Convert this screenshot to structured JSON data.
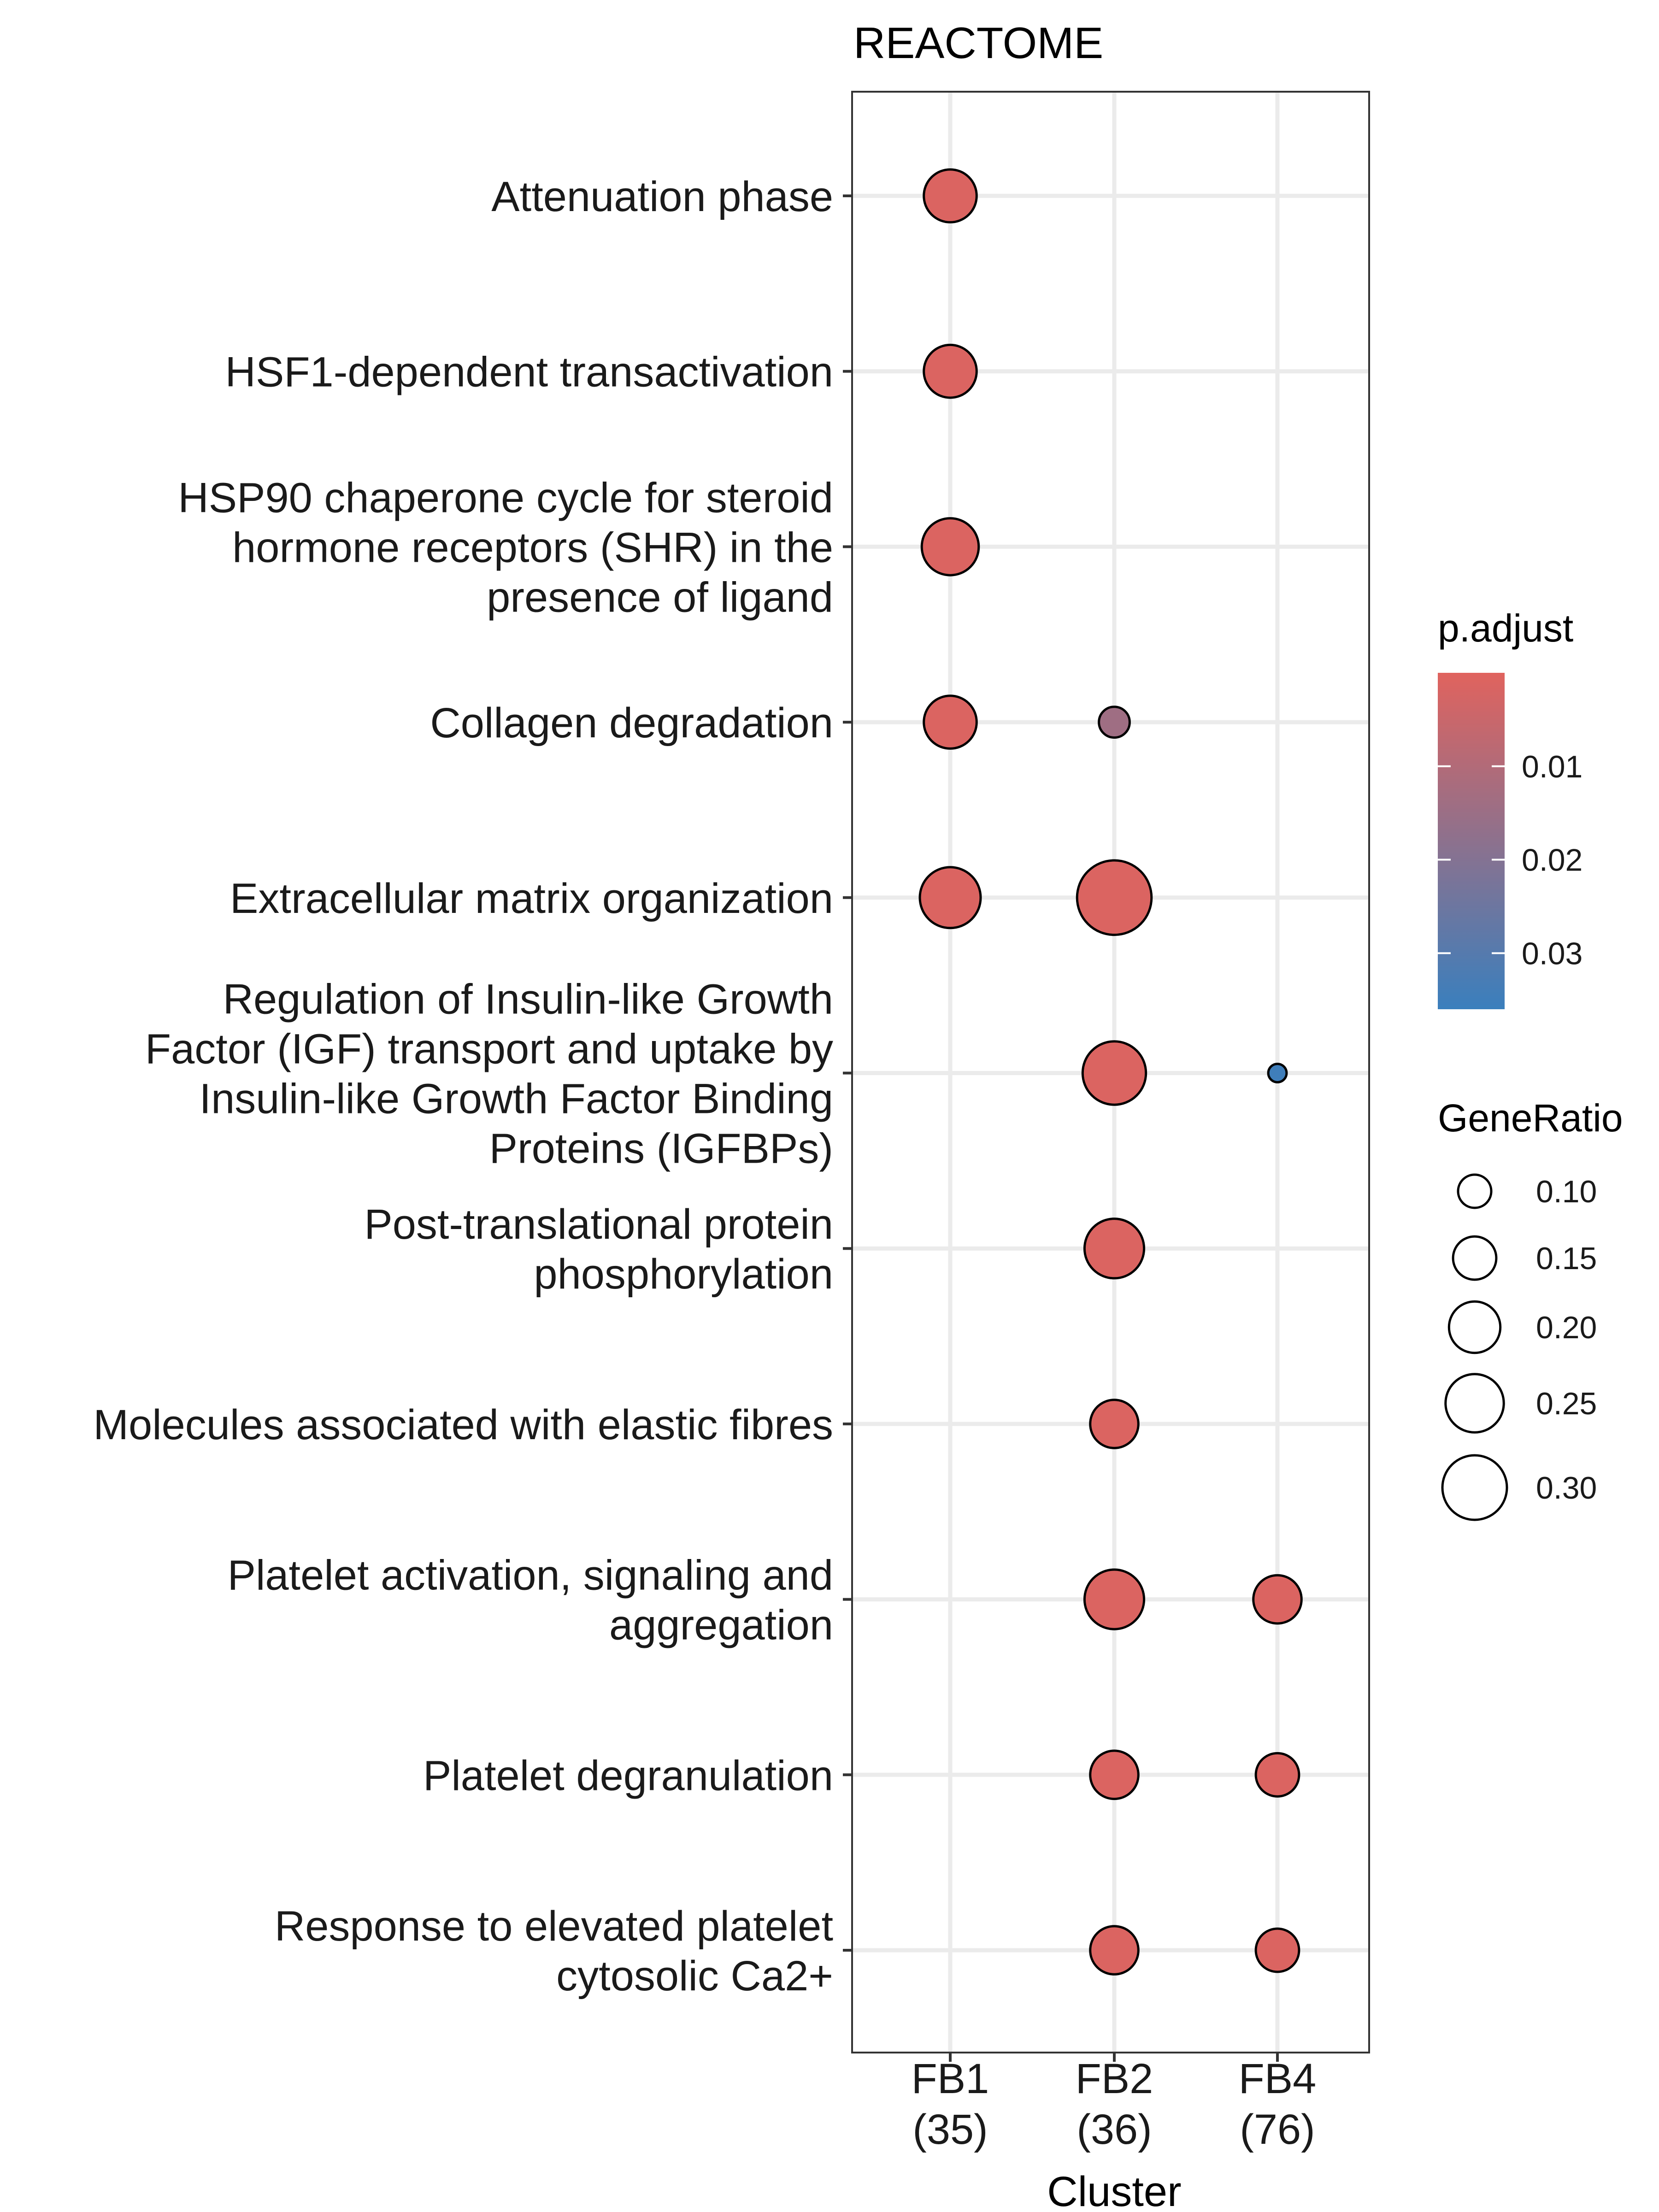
{
  "chart_data": {
    "type": "scatter",
    "title": "REACTOME",
    "xlabel": "Cluster",
    "x_categories": [
      {
        "name": "FB1",
        "count": "(35)"
      },
      {
        "name": "FB2",
        "count": "(36)"
      },
      {
        "name": "FB4",
        "count": "(76)"
      }
    ],
    "y_categories": [
      "Attenuation phase",
      "HSF1-dependent transactivation",
      "HSP90 chaperone cycle for steroid hormone receptors (SHR) in the presence of ligand",
      "Collagen degradation",
      "Extracellular matrix organization",
      "Regulation of Insulin-like Growth Factor (IGF) transport and uptake by Insulin-like Growth Factor Binding Proteins (IGFBPs)",
      "Post-translational protein phosphorylation",
      "Molecules associated with elastic fibres",
      "Platelet activation, signaling and aggregation",
      "Platelet degranulation",
      "Response to elevated platelet cytosolic Ca2+"
    ],
    "y_label_lines": [
      [
        "Attenuation phase"
      ],
      [
        "HSF1-dependent transactivation"
      ],
      [
        "HSP90 chaperone cycle for steroid",
        "hormone receptors (SHR) in the",
        "presence of ligand"
      ],
      [
        "Collagen degradation"
      ],
      [
        "Extracellular matrix organization"
      ],
      [
        "Regulation of Insulin-like Growth",
        "Factor (IGF) transport and uptake by",
        "Insulin-like Growth Factor Binding",
        "Proteins (IGFBPs)"
      ],
      [
        "Post-translational protein",
        "phosphorylation"
      ],
      [
        "Molecules associated with elastic fibres"
      ],
      [
        "Platelet activation, signaling and",
        "aggregation"
      ],
      [
        "Platelet degranulation"
      ],
      [
        "Response to elevated platelet",
        "cytosolic Ca2+"
      ]
    ],
    "points": [
      {
        "x": "FB1",
        "y": "Attenuation phase",
        "gene_ratio": 0.21,
        "p_adjust": 0.001
      },
      {
        "x": "FB1",
        "y": "HSF1-dependent transactivation",
        "gene_ratio": 0.21,
        "p_adjust": 0.001
      },
      {
        "x": "FB1",
        "y": "HSP90 chaperone cycle for steroid hormone receptors (SHR) in the presence of ligand",
        "gene_ratio": 0.24,
        "p_adjust": 0.001
      },
      {
        "x": "FB1",
        "y": "Collagen degradation",
        "gene_ratio": 0.21,
        "p_adjust": 0.001
      },
      {
        "x": "FB1",
        "y": "Extracellular matrix organization",
        "gene_ratio": 0.27,
        "p_adjust": 0.001
      },
      {
        "x": "FB2",
        "y": "Collagen degradation",
        "gene_ratio": 0.09,
        "p_adjust": 0.014
      },
      {
        "x": "FB2",
        "y": "Extracellular matrix organization",
        "gene_ratio": 0.39,
        "p_adjust": 0.001
      },
      {
        "x": "FB2",
        "y": "Regulation of Insulin-like Growth Factor (IGF) transport and uptake by Insulin-like Growth Factor Binding Proteins (IGFBPs)",
        "gene_ratio": 0.29,
        "p_adjust": 0.001
      },
      {
        "x": "FB2",
        "y": "Post-translational protein phosphorylation",
        "gene_ratio": 0.26,
        "p_adjust": 0.001
      },
      {
        "x": "FB2",
        "y": "Molecules associated with elastic fibres",
        "gene_ratio": 0.18,
        "p_adjust": 0.001
      },
      {
        "x": "FB2",
        "y": "Platelet activation, signaling and aggregation",
        "gene_ratio": 0.26,
        "p_adjust": 0.001
      },
      {
        "x": "FB2",
        "y": "Platelet degranulation",
        "gene_ratio": 0.18,
        "p_adjust": 0.001
      },
      {
        "x": "FB2",
        "y": "Response to elevated platelet cytosolic Ca2+",
        "gene_ratio": 0.18,
        "p_adjust": 0.001
      },
      {
        "x": "FB4",
        "y": "Regulation of Insulin-like Growth Factor (IGF) transport and uptake by Insulin-like Growth Factor Binding Proteins (IGFBPs)",
        "gene_ratio": 0.05,
        "p_adjust": 0.035
      },
      {
        "x": "FB4",
        "y": "Platelet activation, signaling and aggregation",
        "gene_ratio": 0.18,
        "p_adjust": 0.001
      },
      {
        "x": "FB4",
        "y": "Platelet degranulation",
        "gene_ratio": 0.15,
        "p_adjust": 0.001
      },
      {
        "x": "FB4",
        "y": "Response to elevated platelet cytosolic Ca2+",
        "gene_ratio": 0.15,
        "p_adjust": 0.001
      }
    ],
    "color_legend": {
      "title": "p.adjust",
      "ticks": [
        0.01,
        0.02,
        0.03
      ],
      "tick_labels": [
        "0.01",
        "0.02",
        "0.03"
      ],
      "range": [
        0.0,
        0.036
      ],
      "low_color": "#e0635e",
      "high_color": "#3a7fbd"
    },
    "size_legend": {
      "title": "GeneRatio",
      "values": [
        0.1,
        0.15,
        0.2,
        0.25,
        0.3
      ],
      "labels": [
        "0.10",
        "0.15",
        "0.20",
        "0.25",
        "0.30"
      ]
    },
    "grid": true,
    "legend_position": "right"
  }
}
